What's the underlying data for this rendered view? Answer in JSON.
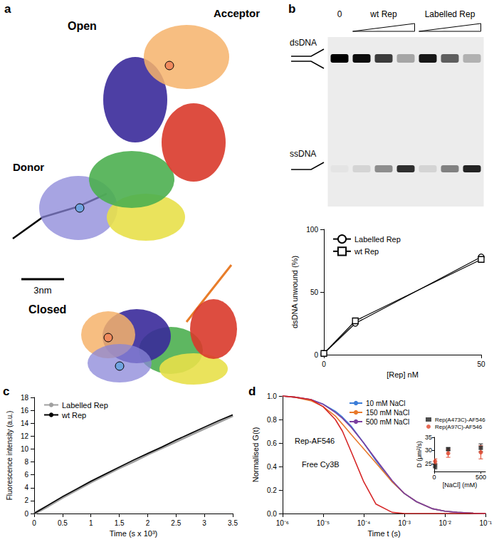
{
  "panel_a": {
    "letter": "a",
    "labels": {
      "open": "Open",
      "acceptor": "Acceptor",
      "donor": "Donor",
      "closed": "Closed",
      "scale": "3nm"
    }
  },
  "panel_b_gel": {
    "letter": "b",
    "rows": [
      "dsDNA",
      "ssDNA"
    ],
    "groups": [
      {
        "label": "0",
        "lanes": 1
      },
      {
        "label": "wt Rep",
        "lanes": 3
      },
      {
        "label": "Labelled Rep",
        "lanes": 3
      }
    ],
    "band_intensity": {
      "dsDNA": [
        1.0,
        0.95,
        0.75,
        0.3,
        0.9,
        0.6,
        0.25
      ],
      "ssDNA": [
        0.03,
        0.1,
        0.4,
        0.8,
        0.1,
        0.45,
        0.85
      ]
    }
  },
  "chart_data": [
    {
      "type": "line",
      "x_label": "[Rep] nM",
      "y_label": "dsDNA unwound (%)",
      "x": [
        0,
        10,
        50
      ],
      "xlim": [
        0,
        50
      ],
      "xticks": [
        0,
        50
      ],
      "ylim": [
        0,
        100
      ],
      "yticks": [
        0,
        50,
        100
      ],
      "grid": false,
      "legend": "upper left",
      "series": [
        {
          "name": "Labelled Rep",
          "color": "#000000",
          "marker": "circle",
          "values": [
            1,
            25,
            78
          ]
        },
        {
          "name": "wt Rep",
          "color": "#000000",
          "marker": "square",
          "values": [
            1,
            27,
            76
          ]
        }
      ]
    },
    {
      "type": "line",
      "panel": "c",
      "x_label": "Time (s x 10³)",
      "y_label": "Fluorescence intensity (a.u.)",
      "x": [
        0,
        0.25,
        0.5,
        0.75,
        1.0,
        1.25,
        1.5,
        1.75,
        2.0,
        2.25,
        2.5,
        2.75,
        3.0,
        3.25,
        3.5
      ],
      "xlim": [
        0,
        3.5
      ],
      "xticks": [
        0,
        0.5,
        1.0,
        1.5,
        2.0,
        2.5,
        3.0,
        3.5
      ],
      "ylim": [
        0,
        18
      ],
      "yticks": [
        0,
        2,
        4,
        6,
        8,
        10,
        12,
        14,
        16,
        18
      ],
      "grid": false,
      "legend": "upper left",
      "series": [
        {
          "name": "Labelled Rep",
          "color": "#a0a0a0",
          "values": [
            0,
            1.2,
            2.5,
            3.7,
            4.9,
            6.0,
            7.1,
            8.1,
            9.2,
            10.2,
            11.2,
            12.2,
            13.2,
            14.2,
            15.2
          ]
        },
        {
          "name": "wt Rep",
          "color": "#000000",
          "values": [
            0,
            1.3,
            2.6,
            3.8,
            5.0,
            6.1,
            7.2,
            8.3,
            9.3,
            10.3,
            11.4,
            12.4,
            13.4,
            14.4,
            15.3
          ]
        }
      ]
    },
    {
      "type": "line",
      "panel": "d",
      "x_label": "Time t (s)",
      "y_label": "Normalised G(t)",
      "log": "x",
      "x": [
        1e-06,
        2e-06,
        5e-06,
        1e-05,
        2e-05,
        3e-05,
        5e-05,
        0.0001,
        0.0002,
        0.0005,
        0.001,
        0.002,
        0.005,
        0.01,
        0.02,
        0.05,
        0.1
      ],
      "xlim": [
        1e-06,
        0.1
      ],
      "xticks": [
        {
          "value": 1e-06,
          "label": "10⁻⁶"
        },
        {
          "value": 1e-05,
          "label": "10⁻⁵"
        },
        {
          "value": 0.0001,
          "label": "10⁻⁴"
        },
        {
          "value": 0.001,
          "label": "10⁻³"
        },
        {
          "value": 0.01,
          "label": "10⁻²"
        },
        {
          "value": 0.1,
          "label": "10⁻¹"
        }
      ],
      "ylim": [
        0,
        1.0
      ],
      "yticks": [
        {
          "value": 0,
          "label": "0.0"
        },
        0.2,
        0.4,
        0.6,
        0.8,
        {
          "value": 1.0,
          "label": "1.0"
        }
      ],
      "grid": false,
      "legend": "upper center",
      "series": [
        {
          "name": "10 mM NaCl",
          "color": "#3b7dd8",
          "values": [
            1.0,
            0.99,
            0.97,
            0.93,
            0.87,
            0.82,
            0.74,
            0.6,
            0.45,
            0.27,
            0.17,
            0.1,
            0.04,
            0.02,
            0.01,
            0.003,
            0
          ]
        },
        {
          "name": "150 mM NaCl",
          "color": "#e8792b",
          "values": [
            1.0,
            0.99,
            0.96,
            0.91,
            0.83,
            0.76,
            0.67,
            0.55,
            0.43,
            0.27,
            0.17,
            0.1,
            0.04,
            0.02,
            0.01,
            0.003,
            0
          ]
        },
        {
          "name": "500 mM NaCl",
          "color": "#7b3fa0",
          "values": [
            1.0,
            0.99,
            0.97,
            0.93,
            0.86,
            0.81,
            0.73,
            0.6,
            0.46,
            0.28,
            0.17,
            0.1,
            0.04,
            0.02,
            0.01,
            0.003,
            0
          ]
        },
        {
          "color": "#d62728",
          "values": [
            1.0,
            0.99,
            0.97,
            0.91,
            0.8,
            0.7,
            0.52,
            0.27,
            0.08,
            0.01,
            0,
            0,
            0,
            0,
            0,
            0,
            0
          ]
        }
      ],
      "annotations": [
        {
          "text": "Rep-AF546",
          "x": 2e-06,
          "y": 0.62
        },
        {
          "text": "Free Cy3B",
          "x": 3e-06,
          "y": 0.42
        }
      ]
    },
    {
      "type": "scatter",
      "x_label": "[NaCl] (mM)",
      "y_label": "D (μm²/s)",
      "x": [
        10,
        150,
        500
      ],
      "xlim": [
        0,
        550
      ],
      "xticks": [
        0,
        500
      ],
      "ylim": [
        22,
        35
      ],
      "yticks": [
        25,
        30,
        35
      ],
      "grid": false,
      "legend": "upper left",
      "series": [
        {
          "name": "Rep(A473C)-AF546",
          "color": "#222222",
          "marker": "square",
          "values": [
            24,
            30.5,
            31
          ],
          "errors": [
            1,
            0.5,
            1.5
          ]
        },
        {
          "name": "Rep(A97C)-AF546",
          "color": "#e0452b",
          "marker": "circle",
          "values": [
            25.8,
            28.9,
            29.3
          ],
          "errors": [
            1,
            1.5,
            2.5
          ]
        }
      ]
    }
  ]
}
